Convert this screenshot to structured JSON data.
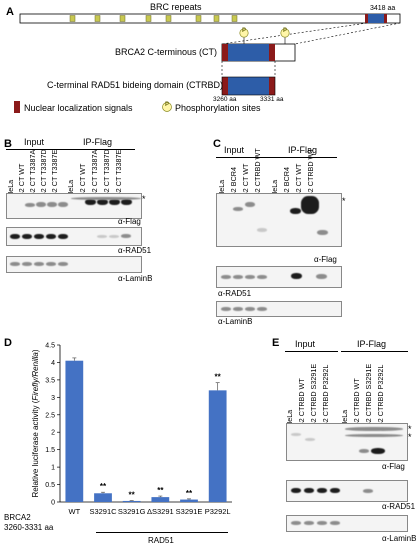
{
  "panel_a": {
    "letter": "A",
    "brc_label": "BRC repeats",
    "length_label": "3418 aa",
    "phospho_symbol": "P",
    "ct_label": "BRCA2 C-terminous (CT)",
    "ctrbd_label": "C-terminal RAD51 bideing domain (CTRBD)",
    "ctrbd_start": "3260 aa",
    "ctrbd_end": "3331 aa",
    "legend_nls": "Nuclear localization signals",
    "legend_phospho": "Phosphorylation sites"
  },
  "panel_b": {
    "letter": "B",
    "group_input": "Input",
    "group_ip": "IP-Flag",
    "lanes": [
      "HeLa",
      "B2 CT WT",
      "B2 CT T3387A",
      "B2 CT T3387D",
      "B2 CT T3387E",
      "HeLa",
      "B2 CT WT",
      "B2 CT T3387A",
      "B2 CT T3387D",
      "B2 CT T3387E"
    ],
    "blots": [
      "α-Flag",
      "α-RAD51",
      "α-LaminB"
    ],
    "star": "*"
  },
  "panel_c": {
    "letter": "C",
    "group_input": "Input",
    "group_ip": "IP-Flag",
    "lanes": [
      "HeLa",
      "B2 BCR4",
      "B2 CT WT",
      "B2 CTRBD WT",
      "HeLa",
      "B2 BCR4",
      "B2 CT WT",
      "B2 CTRBD WT"
    ],
    "blots": [
      "α-Flag",
      "α-RAD51",
      "α-LaminB"
    ],
    "star": "*"
  },
  "panel_d": {
    "letter": "D",
    "footer_left_1": "BRCA2",
    "footer_left_2": "3260-3331 aa",
    "footer_group": "RAD51",
    "significance": "**"
  },
  "panel_e": {
    "letter": "E",
    "group_input": "Input",
    "group_ip": "IP-Flag",
    "lanes": [
      "HeLa",
      "B2 CTRBD WT",
      "B2 CTRBD S3291E",
      "B2 CTRBD P3292L",
      "HeLa",
      "B2 CTRBD WT",
      "B2 CTRBD S3291E",
      "B2 CTRBD P3292L"
    ],
    "blots": [
      "α-Flag",
      "α-RAD51",
      "α-LaminB"
    ],
    "star": "*"
  },
  "chart_data": {
    "type": "bar",
    "categories": [
      "WT",
      "S3291C",
      "S3291G",
      "ΔS3291",
      "S3291E",
      "P3292L"
    ],
    "values": [
      4.05,
      0.25,
      0.03,
      0.14,
      0.07,
      3.2
    ],
    "errors": [
      0.08,
      0.03,
      0.01,
      0.03,
      0.02,
      0.22
    ],
    "significant": [
      false,
      true,
      true,
      true,
      true,
      true
    ],
    "ylabel_main": "Relative luciferase activity (",
    "ylabel_italic": "Firefly/Renilla",
    "ylabel_end": ")",
    "ylim": [
      0,
      4.5
    ],
    "yticks": [
      "0",
      "0.5",
      "1",
      "1.5",
      "2",
      "2.5",
      "3",
      "3.5",
      "4",
      "4.5"
    ],
    "bar_color": "#4472c4"
  }
}
